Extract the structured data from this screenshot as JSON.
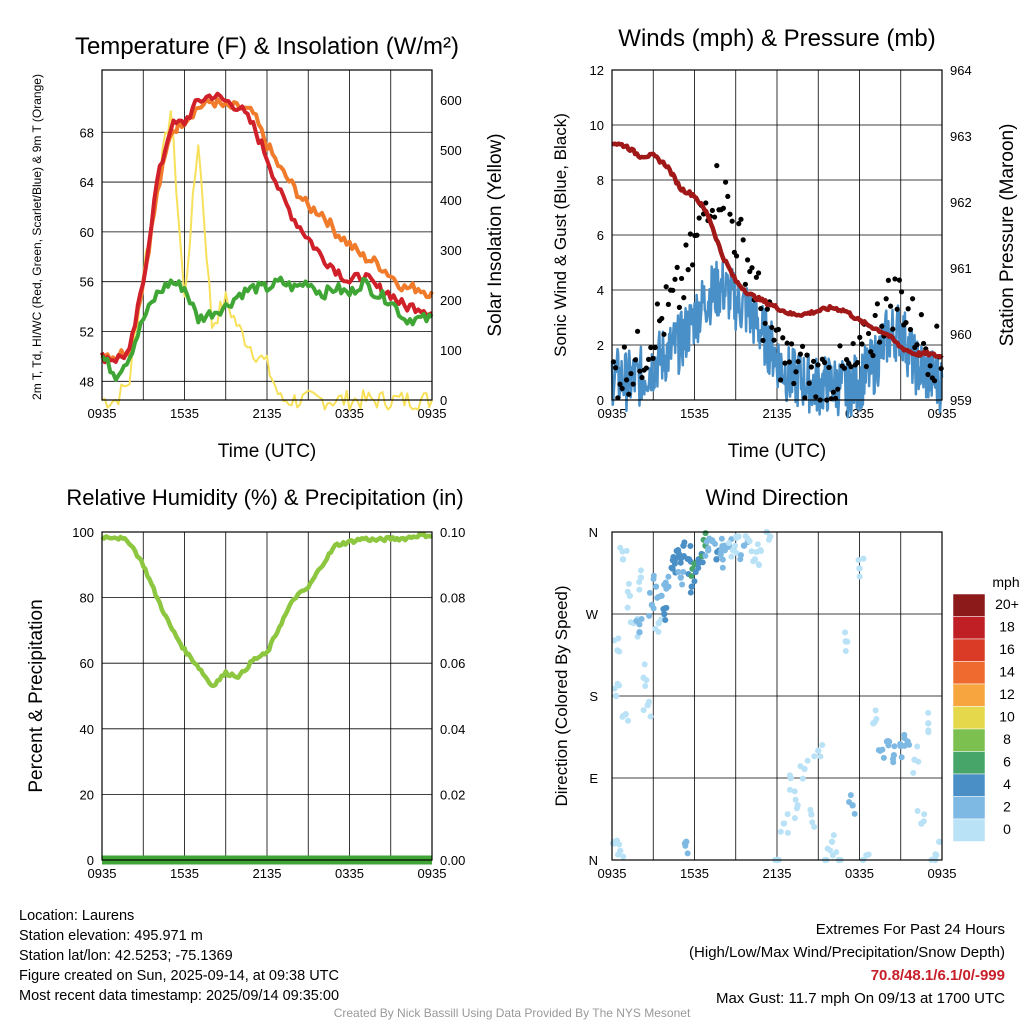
{
  "chart_data": [
    {
      "type": "line",
      "title": "Temperature (F) & Insolation (W/m²)",
      "xlabel": "Time (UTC)",
      "ylabel": "2m T, Td, HI/WC (Red, Green, Scarlet/Blue) & 9m T (Orange)",
      "y2label": "Solar Insolation (Yellow)",
      "x_ticks": [
        "0935",
        "1535",
        "2135",
        "0335",
        "0935"
      ],
      "ylim": [
        46.5,
        73
      ],
      "y_ticks": [
        48,
        52,
        56,
        60,
        64,
        68
      ],
      "y2lim": [
        0,
        660
      ],
      "y2_ticks": [
        0,
        100,
        200,
        300,
        400,
        500,
        600
      ],
      "hours": [
        0,
        1,
        2,
        3,
        4,
        5,
        6,
        7,
        8,
        9,
        10,
        11,
        12,
        13,
        14,
        15,
        16,
        17,
        18,
        19,
        20,
        21,
        22,
        23,
        24
      ],
      "series": [
        {
          "color": "#f07b2a",
          "axis": "left",
          "values": [
            50.3,
            50,
            50.6,
            56,
            63,
            68,
            69,
            70,
            70.5,
            70,
            70,
            69.5,
            67,
            65,
            63.5,
            62,
            61.5,
            60,
            59,
            58,
            57.5,
            56.5,
            55.5,
            55.5,
            55
          ]
        },
        {
          "color": "#d0202a",
          "axis": "left",
          "values": [
            50,
            49.8,
            50.3,
            56,
            64,
            68.5,
            68.8,
            70.5,
            71,
            70.5,
            70,
            68.5,
            66,
            63,
            61,
            59.5,
            58,
            57,
            56,
            56.5,
            55.5,
            55,
            54,
            54,
            53.5
          ]
        },
        {
          "color": "#3fa535",
          "axis": "left",
          "values": [
            50,
            48.5,
            50,
            53,
            55,
            56,
            55.5,
            53,
            53.5,
            54,
            55,
            55.5,
            55.5,
            56,
            55.5,
            56,
            55,
            55.5,
            55,
            56,
            55,
            54.5,
            53,
            53,
            53
          ]
        },
        {
          "color": "#f7e05a",
          "axis": "right",
          "values": [
            0,
            0,
            40,
            260,
            420,
            580,
            200,
            520,
            150,
            200,
            140,
            100,
            70,
            0,
            0,
            0,
            0,
            0,
            0,
            0,
            0,
            0,
            0,
            0,
            0
          ]
        }
      ]
    },
    {
      "type": "scatter",
      "title": "Winds (mph) & Pressure (mb)",
      "xlabel": "Time (UTC)",
      "ylabel": "Sonic Wind & Gust (Blue, Black)",
      "y2label": "Station Pressure (Maroon)",
      "x_ticks": [
        "0935",
        "1535",
        "2135",
        "0335",
        "0935"
      ],
      "ylim": [
        0,
        12
      ],
      "y_ticks": [
        0,
        2,
        4,
        6,
        8,
        10,
        12
      ],
      "y2lim": [
        959,
        964
      ],
      "y2_ticks": [
        959,
        960,
        961,
        962,
        963,
        964
      ],
      "hours": [
        0,
        1,
        2,
        3,
        4,
        5,
        6,
        7,
        8,
        9,
        10,
        11,
        12,
        13,
        14,
        15,
        16,
        17,
        18,
        19,
        20,
        21,
        22,
        23,
        24
      ],
      "series": [
        {
          "color": "#4a90c8",
          "type": "line",
          "axis": "left",
          "values": [
            0.9,
            0.7,
            0.8,
            1.3,
            1.7,
            2.1,
            3.0,
            3.8,
            4.1,
            3.6,
            3.2,
            2.4,
            1.5,
            0.8,
            0.7,
            0.5,
            0.6,
            0.4,
            0.7,
            1.2,
            2.3,
            2.6,
            1.3,
            0.9,
            0.6
          ]
        },
        {
          "color": "#000000",
          "type": "scatter",
          "axis": "left",
          "values": [
            0.9,
            1.2,
            1.5,
            2.5,
            3.2,
            4.0,
            5.5,
            7.5,
            7.8,
            6.0,
            5.0,
            3.0,
            2.0,
            1.2,
            1.0,
            0.8,
            0.9,
            0.9,
            1.3,
            2.5,
            3.5,
            3.8,
            2.6,
            2.0,
            1.4
          ]
        },
        {
          "color": "#a01818",
          "type": "line",
          "axis": "right",
          "values": [
            962.9,
            962.85,
            962.7,
            962.7,
            962.55,
            962.2,
            962.1,
            961.8,
            961.2,
            960.8,
            960.6,
            960.5,
            960.4,
            960.3,
            960.3,
            960.35,
            960.4,
            960.35,
            960.2,
            960.1,
            960.0,
            959.8,
            959.7,
            959.7,
            959.65
          ]
        }
      ]
    },
    {
      "type": "line",
      "title": "Relative Humidity (%) & Precipitation (in)",
      "ylabel": "Percent & Precipitation",
      "x_ticks": [
        "0935",
        "1535",
        "2135",
        "0335",
        "0935"
      ],
      "ylim": [
        0,
        100
      ],
      "y_ticks": [
        0,
        20,
        40,
        60,
        80,
        100
      ],
      "y2lim": [
        0,
        0.1
      ],
      "y2_ticks": [
        "0.00",
        "0.02",
        "0.04",
        "0.06",
        "0.08",
        "0.10"
      ],
      "hours": [
        0,
        1,
        2,
        3,
        4,
        5,
        6,
        7,
        8,
        9,
        10,
        11,
        12,
        13,
        14,
        15,
        16,
        17,
        18,
        19,
        20,
        21,
        22,
        23,
        24
      ],
      "series": [
        {
          "color": "#8dc63f",
          "axis": "left",
          "values": [
            98.5,
            98.5,
            97,
            90,
            80,
            71,
            64,
            59,
            53,
            57,
            56,
            61,
            63,
            72,
            80,
            83,
            90,
            96,
            97,
            98,
            97.5,
            98,
            98,
            99,
            99
          ]
        },
        {
          "color": "#3fa535",
          "axis": "right",
          "values": [
            0,
            0,
            0,
            0,
            0,
            0,
            0,
            0,
            0,
            0,
            0,
            0,
            0,
            0,
            0,
            0,
            0,
            0,
            0,
            0,
            0,
            0,
            0,
            0,
            0
          ]
        }
      ]
    },
    {
      "type": "scatter",
      "title": "Wind Direction",
      "ylabel": "Direction (Colored By Speed)",
      "x_ticks": [
        "0935",
        "1535",
        "2135",
        "0335",
        "0935"
      ],
      "y_ticks": [
        "N",
        "E",
        "S",
        "W",
        "N"
      ],
      "ylim_degrees": [
        0,
        360
      ],
      "legend": {
        "title": "mph",
        "labels": [
          "0",
          "2",
          "4",
          "6",
          "8",
          "10",
          "12",
          "14",
          "16",
          "18",
          "20+"
        ],
        "colors": [
          "#b9e2f7",
          "#7db9e3",
          "#4a8fc5",
          "#47a56a",
          "#7cc14f",
          "#e6d84b",
          "#f7a53f",
          "#ef6a2e",
          "#d93b27",
          "#c02025",
          "#8c1a1a"
        ]
      },
      "points": [
        [
          0.2,
          20,
          0
        ],
        [
          0.3,
          180,
          0
        ],
        [
          0.4,
          230,
          0
        ],
        [
          0.6,
          10,
          0
        ],
        [
          0.8,
          330,
          0
        ],
        [
          1.0,
          160,
          0
        ],
        [
          1.3,
          290,
          0
        ],
        [
          1.6,
          260,
          0
        ],
        [
          2.0,
          250,
          1
        ],
        [
          2.1,
          310,
          0
        ],
        [
          2.3,
          200,
          0
        ],
        [
          2.6,
          170,
          0
        ],
        [
          2.9,
          280,
          1
        ],
        [
          3.2,
          300,
          1
        ],
        [
          3.4,
          260,
          0
        ],
        [
          3.6,
          290,
          1
        ],
        [
          3.8,
          270,
          2
        ],
        [
          4.1,
          300,
          1
        ],
        [
          4.4,
          320,
          2
        ],
        [
          4.6,
          330,
          2
        ],
        [
          4.8,
          340,
          2
        ],
        [
          5.0,
          310,
          1
        ],
        [
          5.2,
          345,
          2
        ],
        [
          5.4,
          20,
          1
        ],
        [
          5.6,
          330,
          2
        ],
        [
          5.8,
          300,
          2
        ],
        [
          6.0,
          325,
          3
        ],
        [
          6.3,
          330,
          2
        ],
        [
          6.6,
          335,
          2
        ],
        [
          6.8,
          345,
          3
        ],
        [
          7.0,
          340,
          1
        ],
        [
          7.3,
          350,
          1
        ],
        [
          7.6,
          330,
          2
        ],
        [
          7.9,
          335,
          1
        ],
        [
          8.2,
          340,
          1
        ],
        [
          8.5,
          345,
          1
        ],
        [
          8.8,
          340,
          0
        ],
        [
          9.2,
          355,
          0
        ],
        [
          9.6,
          345,
          1
        ],
        [
          10.0,
          350,
          0
        ],
        [
          10.4,
          330,
          0
        ],
        [
          10.8,
          340,
          0
        ],
        [
          11.5,
          355,
          0
        ],
        [
          12.0,
          0,
          0
        ],
        [
          12.5,
          40,
          0
        ],
        [
          13.0,
          90,
          0
        ],
        [
          13.5,
          60,
          0
        ],
        [
          14.0,
          100,
          0
        ],
        [
          14.5,
          50,
          0
        ],
        [
          15.0,
          120,
          0
        ],
        [
          15.5,
          0,
          0
        ],
        [
          16.0,
          20,
          0
        ],
        [
          16.5,
          0,
          0
        ],
        [
          17.0,
          240,
          0
        ],
        [
          17.5,
          60,
          1
        ],
        [
          18.0,
          320,
          0
        ],
        [
          18.5,
          5,
          0
        ],
        [
          19.0,
          150,
          0
        ],
        [
          19.5,
          120,
          1
        ],
        [
          20.0,
          130,
          1
        ],
        [
          20.5,
          115,
          1
        ],
        [
          21.0,
          125,
          1
        ],
        [
          21.5,
          130,
          1
        ],
        [
          22.0,
          110,
          0
        ],
        [
          22.5,
          40,
          0
        ],
        [
          23.0,
          150,
          0
        ],
        [
          23.5,
          0,
          0
        ],
        [
          23.8,
          20,
          0
        ]
      ]
    }
  ],
  "info": {
    "location": "Location: Laurens",
    "elevation": "Station elevation: 495.971 m",
    "latlon": "Station lat/lon: 42.5253; -75.1369",
    "created": "Figure created on Sun, 2025-09-14, at 09:38 UTC",
    "recent": "Most recent data timestamp: 2025/09/14 09:35:00"
  },
  "extremes": {
    "title": "Extremes For Past 24 Hours",
    "subtitle": "(High/Low/Max Wind/Precipitation/Snow Depth)",
    "values": "70.8/48.1/6.1/0/-999",
    "gust": "Max Gust: 11.7 mph On 09/13 at 1700 UTC"
  },
  "credit": "Created By Nick Bassill Using Data Provided By The NYS Mesonet"
}
